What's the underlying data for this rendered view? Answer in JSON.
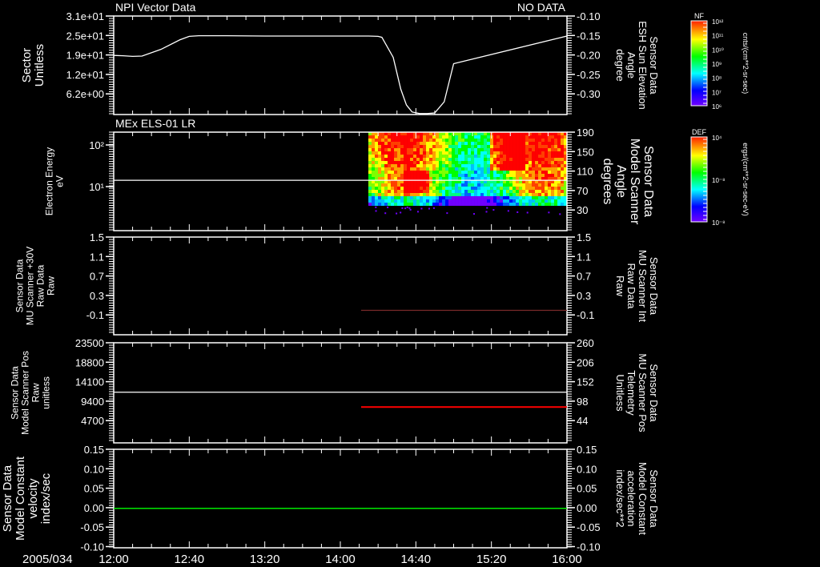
{
  "chart_data": {
    "type": "line",
    "date_label": "2005/034",
    "time_ticks": [
      "12:00",
      "12:40",
      "13:20",
      "14:00",
      "14:40",
      "15:20",
      "16:00"
    ],
    "time_range_min": [
      0,
      240
    ],
    "panels": [
      {
        "title": "NPI Vector Data",
        "title_right": "NO DATA",
        "left_label": [
          "Sector",
          "Unitless"
        ],
        "left_ticks": [
          "3.1e+01",
          "2.5e+01",
          "1.9e+01",
          "1.2e+01",
          "6.2e+00"
        ],
        "left_tick_values": [
          31,
          24.8,
          18.6,
          12.4,
          6.2
        ],
        "ylim": [
          0,
          31
        ],
        "right_label": [
          "Sensor Data",
          "ESH Sun Elevation",
          "Angle",
          "degree"
        ],
        "right_ticks": [
          "-0.10",
          "-0.15",
          "-0.20",
          "-0.25",
          "-0.30"
        ],
        "right_color": "#ffffff",
        "series": [
          {
            "name": "Sector",
            "color": "#ffffff",
            "x": [
              0,
              5,
              10,
              15,
              25,
              35,
              40,
              45,
              60,
              80,
              100,
              120,
              130,
              135,
              140,
              142,
              148,
              152,
              155,
              158,
              162,
              166,
              170,
              175,
              180,
              240
            ],
            "y": [
              18.6,
              18.5,
              18.3,
              18.4,
              20.5,
              23.5,
              24.6,
              24.8,
              24.8,
              24.7,
              24.7,
              24.7,
              24.7,
              24.7,
              24.6,
              24.3,
              18,
              8,
              3,
              0.8,
              0.3,
              0.3,
              0.5,
              4,
              16,
              24.7
            ]
          }
        ]
      },
      {
        "title": "MEx ELS-01 LR",
        "left_label": [
          "Electron Energy",
          "eV"
        ],
        "left_ticks": [
          "10²",
          "10¹"
        ],
        "left_tick_values": [
          100,
          10
        ],
        "log": true,
        "ylim": [
          0.88,
          203
        ],
        "right_label": [
          "Sensor Data",
          "Model Scanner",
          "Angle",
          "degrees"
        ],
        "right_ticks": [
          "190",
          "150",
          "110",
          "70",
          "30"
        ],
        "right_color": "#ffffff",
        "series": [
          {
            "name": "Energy",
            "color": "#ffffff",
            "x": [
              0,
              240
            ],
            "y": [
              14.2,
              14.2
            ]
          }
        ],
        "spectrogram": {
          "start_min": 134,
          "end_min": 240,
          "ymin": 3.5,
          "ymax": 203
        }
      },
      {
        "left_label": [
          "Sensor Data",
          "MU Scanner +30V",
          "Raw Data",
          "Raw"
        ],
        "left_ticks": [
          "1.5",
          "1.1",
          "0.7",
          "0.3",
          "-0.1"
        ],
        "ylim": [
          -0.5,
          1.5
        ],
        "right_label": [
          "Sensor Data",
          "MU Scanner Int",
          "Raw Data",
          "Raw"
        ],
        "right_ticks": [
          "1.5",
          "1.1",
          "0.7",
          "0.3",
          "-0.1"
        ],
        "right_color": "#ff0000",
        "series": [
          {
            "name": "MU Scanner Int",
            "color": "#7a2a2a",
            "x": [
              131,
              240
            ],
            "y": [
              0.0,
              0.0
            ]
          }
        ]
      },
      {
        "left_label": [
          "Sensor Data",
          "Model Scanner Pos",
          "Raw",
          "unitless"
        ],
        "left_ticks": [
          "23500",
          "18800",
          "14100",
          "9400",
          "4700"
        ],
        "ylim": [
          -800,
          23500
        ],
        "right_label": [
          "Sensor Data",
          "MU Scanner Pos",
          "Telemetry",
          "Unitless"
        ],
        "right_ticks": [
          "260",
          "206",
          "152",
          "98",
          "44"
        ],
        "right_color": "#ff0000",
        "series": [
          {
            "name": "Model Scanner Pos",
            "color": "#ffffff",
            "x": [
              0,
              240
            ],
            "y": [
              11500,
              11500
            ]
          },
          {
            "name": "MU Scanner Pos",
            "color": "#ff0000",
            "x": [
              131,
              240
            ],
            "y": [
              7900,
              7900
            ]
          }
        ]
      },
      {
        "left_label": [
          "Sensor Data",
          "Model Constant",
          "velocity",
          "index/sec"
        ],
        "left_ticks": [
          "0.15",
          "0.10",
          "0.05",
          "0.00",
          "-0.05",
          "-0.10"
        ],
        "ylim": [
          -0.1,
          0.15
        ],
        "right_label": [
          "Sensor Data",
          "Model Constant",
          "acceleration",
          "index/sec**2"
        ],
        "right_ticks": [
          "0.15",
          "0.10",
          "0.05",
          "0.00",
          "-0.05",
          "-0.10"
        ],
        "right_color": "#00ff00",
        "series": [
          {
            "name": "velocity",
            "color": "#00ff00",
            "x": [
              0,
              240
            ],
            "y": [
              0,
              0
            ]
          }
        ]
      }
    ],
    "colorbars": [
      {
        "title": "NF",
        "ticks": [
          "10¹²",
          "10¹¹",
          "10¹⁰",
          "10⁹",
          "10⁸",
          "10⁷",
          "10⁶"
        ],
        "unit": "cnts/(cm**2-sr-sec)"
      },
      {
        "title": "DEF",
        "ticks": [
          "10⁴",
          "10⁻⁸",
          "10⁻⁸"
        ],
        "unit": "ergs/(cm**2-sr-sec-eV)"
      }
    ]
  }
}
